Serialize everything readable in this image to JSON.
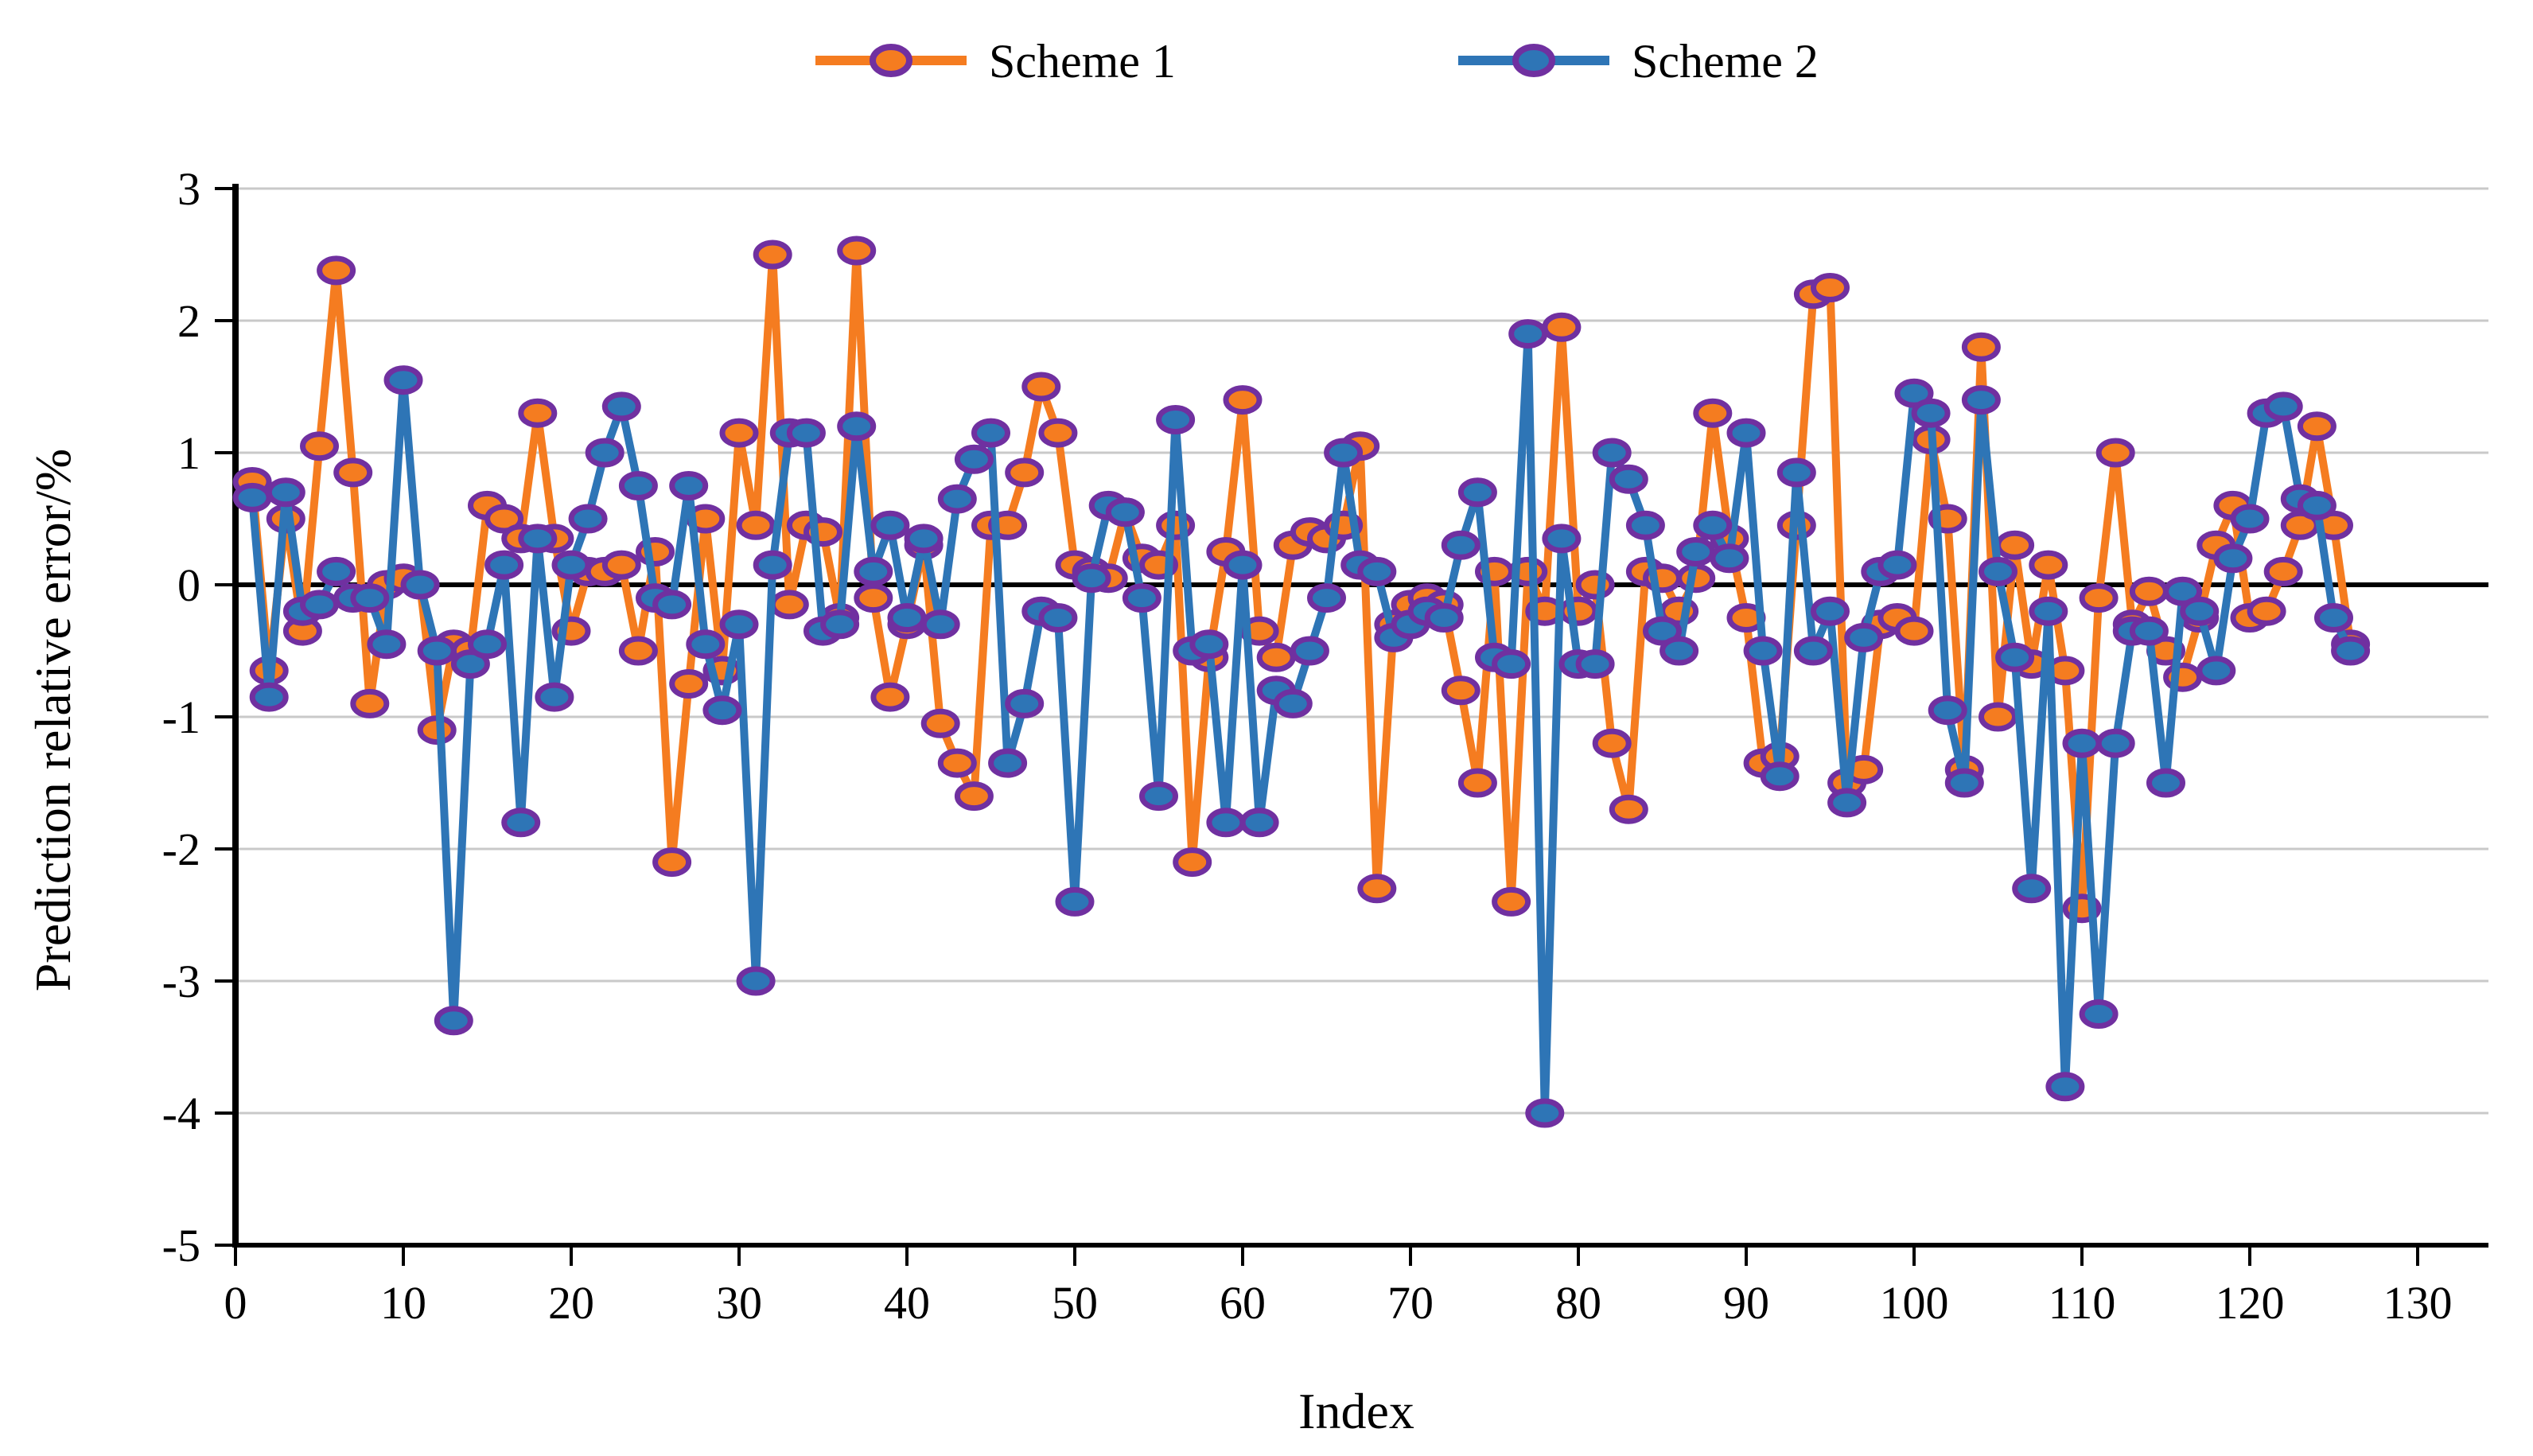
{
  "chart_data": {
    "type": "line",
    "title": "",
    "xlabel": "Index",
    "ylabel": "Prediction relative error/%",
    "xlim": [
      0,
      130
    ],
    "ylim": [
      -5,
      3
    ],
    "x_start_index": 1,
    "x_ticks": [
      0,
      10,
      20,
      30,
      40,
      50,
      60,
      70,
      80,
      90,
      100,
      110,
      120,
      130
    ],
    "y_ticks": [
      3,
      2,
      1,
      0,
      -1,
      -2,
      -3,
      -4,
      -5
    ],
    "grid": "horizontal",
    "legend_position": "top-center",
    "grid_color": "#C9C9C9",
    "zero_line_color": "#000000",
    "axis_color": "#000000",
    "marker_ring_color": "#7030A0",
    "series": [
      {
        "name": "Scheme 1",
        "color": "#F57C20",
        "values": [
          0.78,
          -0.65,
          0.5,
          -0.35,
          1.05,
          2.38,
          0.85,
          -0.9,
          0.0,
          0.05,
          0.0,
          -1.1,
          -0.45,
          -0.5,
          0.6,
          0.5,
          0.35,
          1.3,
          0.35,
          -0.35,
          0.1,
          0.1,
          0.15,
          -0.5,
          0.25,
          -2.1,
          -0.75,
          0.5,
          -0.65,
          1.15,
          0.45,
          2.5,
          -0.15,
          0.45,
          0.4,
          -0.25,
          2.53,
          -0.1,
          -0.85,
          -0.3,
          0.3,
          -1.05,
          -1.35,
          -1.6,
          0.45,
          0.45,
          0.85,
          1.5,
          1.15,
          0.15,
          0.1,
          0.05,
          0.55,
          0.2,
          0.15,
          0.45,
          -2.1,
          -0.55,
          0.25,
          1.4,
          -0.35,
          -0.55,
          0.3,
          0.4,
          0.35,
          0.45,
          1.05,
          -2.3,
          -0.3,
          -0.15,
          -0.1,
          -0.15,
          -0.8,
          -1.5,
          0.1,
          -2.4,
          0.1,
          -0.2,
          1.95,
          -0.2,
          0.0,
          -1.2,
          -1.7,
          0.1,
          0.05,
          -0.2,
          0.05,
          1.3,
          0.35,
          -0.25,
          -1.35,
          -1.3,
          0.45,
          2.2,
          2.25,
          -1.5,
          -1.4,
          -0.3,
          -0.25,
          -0.35,
          1.1,
          0.5,
          -1.4,
          1.8,
          -1.0,
          0.3,
          -0.6,
          0.15,
          -0.65,
          -2.45,
          -0.1,
          1.0,
          -0.3,
          -0.05,
          -0.5,
          -0.7,
          -0.25,
          0.3,
          0.6,
          -0.25,
          -0.2,
          0.1,
          0.45,
          1.2,
          0.45,
          -0.45
        ]
      },
      {
        "name": "Scheme 2",
        "color": "#2E75B6",
        "values": [
          0.66,
          -0.85,
          0.7,
          -0.2,
          -0.15,
          0.1,
          -0.1,
          -0.1,
          -0.45,
          1.55,
          0.0,
          -0.5,
          -3.3,
          -0.6,
          -0.45,
          0.15,
          -1.8,
          0.35,
          -0.85,
          0.15,
          0.5,
          1.0,
          1.35,
          0.75,
          -0.1,
          -0.15,
          0.75,
          -0.45,
          -0.95,
          -0.3,
          -3.0,
          0.15,
          1.15,
          1.15,
          -0.35,
          -0.3,
          1.2,
          0.1,
          0.45,
          -0.25,
          0.35,
          -0.3,
          0.65,
          0.95,
          1.15,
          -1.35,
          -0.9,
          -0.2,
          -0.25,
          -2.4,
          0.05,
          0.6,
          0.55,
          -0.1,
          -1.6,
          1.25,
          -0.5,
          -0.45,
          -1.8,
          0.15,
          -1.8,
          -0.8,
          -0.9,
          -0.5,
          -0.1,
          1.0,
          0.15,
          0.1,
          -0.4,
          -0.3,
          -0.2,
          -0.25,
          0.3,
          0.7,
          -0.55,
          -0.6,
          1.9,
          -4.0,
          0.35,
          -0.6,
          -0.6,
          1.0,
          0.8,
          0.45,
          -0.35,
          -0.5,
          0.25,
          0.45,
          0.2,
          1.15,
          -0.5,
          -1.45,
          0.85,
          -0.5,
          -0.2,
          -1.65,
          -0.4,
          0.1,
          0.15,
          1.45,
          1.3,
          -0.95,
          -1.5,
          1.4,
          0.1,
          -0.55,
          -2.3,
          -0.2,
          -3.8,
          -1.2,
          -3.25,
          -1.2,
          -0.35,
          -0.35,
          -1.5,
          -0.05,
          -0.2,
          -0.65,
          0.2,
          0.5,
          1.3,
          1.35,
          0.65,
          0.6,
          -0.25,
          -0.5
        ]
      }
    ]
  }
}
